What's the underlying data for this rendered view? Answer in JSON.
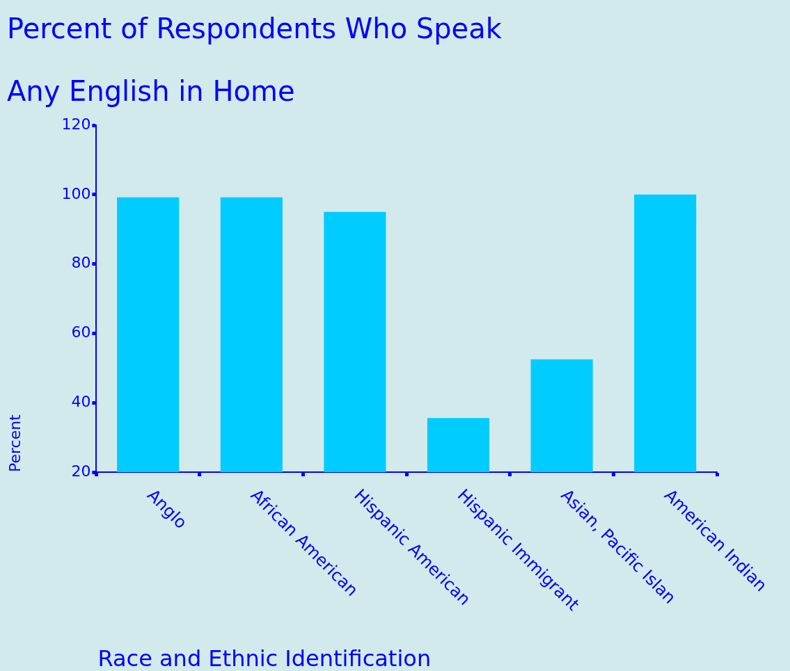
{
  "chart_data": {
    "type": "bar",
    "title": [
      "Percent of Respondents Who Speak",
      "Any English in Home"
    ],
    "xlabel": "Race and Ethnic Identification",
    "ylabel": "Percent",
    "categories": [
      "Anglo",
      "African American",
      "Hispanic American",
      "Hispanic Immigrant",
      "Asian, Pacific Islan",
      "American Indian"
    ],
    "values": [
      99.2,
      99.2,
      95,
      35.6,
      52.5,
      100
    ],
    "color": "#00ccff",
    "ylim": [
      20,
      120
    ],
    "yticks": [
      20,
      40,
      60,
      80,
      100,
      120
    ],
    "legend": false
  }
}
